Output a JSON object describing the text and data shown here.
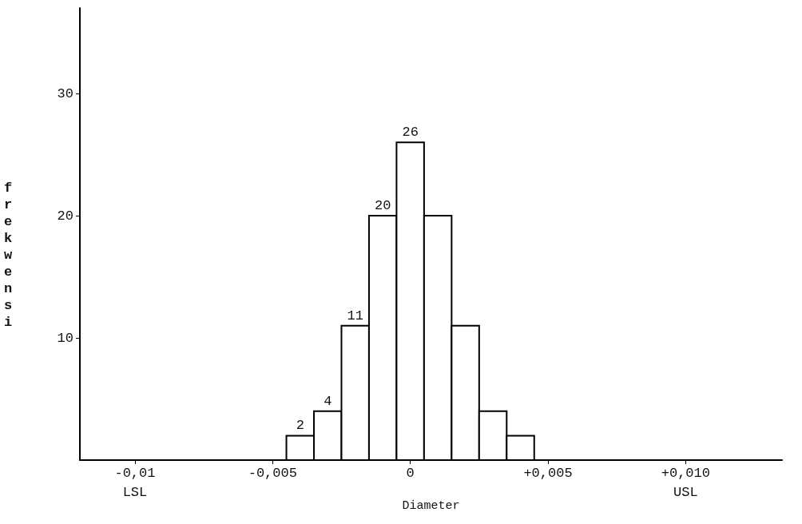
{
  "chart_data": {
    "type": "histogram",
    "bins": [
      -0.0045,
      -0.0035,
      -0.0025,
      -0.0015,
      -0.0005,
      0.0005,
      0.0015,
      0.0025,
      0.0035,
      0.0045
    ],
    "values": [
      2,
      4,
      11,
      20,
      26,
      20,
      11,
      4,
      2
    ],
    "value_labels": [
      "2",
      "4",
      "11",
      "20",
      "26",
      null,
      null,
      null,
      null
    ],
    "color": "#ffffff",
    "xlabel": "Diameter",
    "ylabel": "frekwensi",
    "xlim": [
      -0.012,
      0.0135
    ],
    "xticks": [
      {
        "value": -0.01,
        "label": "-0,01"
      },
      {
        "value": -0.005,
        "label": "-0,005"
      },
      {
        "value": 0,
        "label": "0"
      },
      {
        "value": 0.005,
        "label": "+0,005"
      },
      {
        "value": 0.01,
        "label": "+0,010"
      }
    ],
    "ylim": [
      0,
      37
    ],
    "yticks": [
      10,
      20,
      30
    ],
    "annotations": [
      "LSL",
      "USL"
    ],
    "grid": false
  }
}
